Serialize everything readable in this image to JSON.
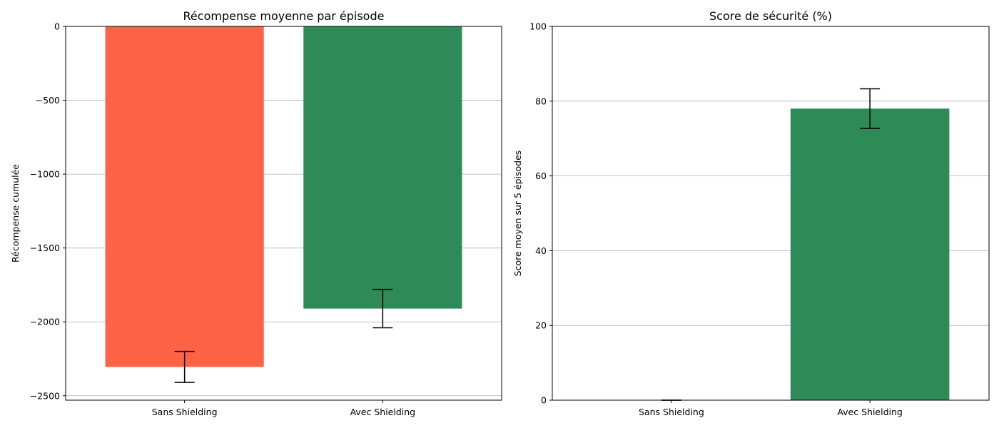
{
  "chart_data": [
    {
      "type": "bar",
      "title": "Récompense moyenne par épisode",
      "xlabel": "",
      "ylabel": "Récompense cumulée",
      "categories": [
        "Sans Shielding",
        "Avec Shielding"
      ],
      "values": [
        -2305,
        -1910
      ],
      "error": [
        105,
        130
      ],
      "colors": [
        "#FF6347",
        "#2E8B57"
      ],
      "ylim": [
        -2530,
        0
      ],
      "yticks": [
        0,
        -500,
        -1000,
        -1500,
        -2000,
        -2500
      ],
      "ytick_labels": [
        "0",
        "−500",
        "−1000",
        "−1500",
        "−2000",
        "−2500"
      ],
      "grid": "y"
    },
    {
      "type": "bar",
      "title": "Score de sécurité (%)",
      "xlabel": "",
      "ylabel": "Score moyen sur 5 épisodes",
      "categories": [
        "Sans Shielding",
        "Avec Shielding"
      ],
      "values": [
        0,
        78
      ],
      "error": [
        0,
        5.3
      ],
      "colors": [
        "#FF6347",
        "#2E8B57"
      ],
      "ylim": [
        0,
        100
      ],
      "yticks": [
        0,
        20,
        40,
        60,
        80,
        100
      ],
      "ytick_labels": [
        "0",
        "20",
        "40",
        "60",
        "80",
        "100"
      ],
      "grid": "y"
    }
  ]
}
